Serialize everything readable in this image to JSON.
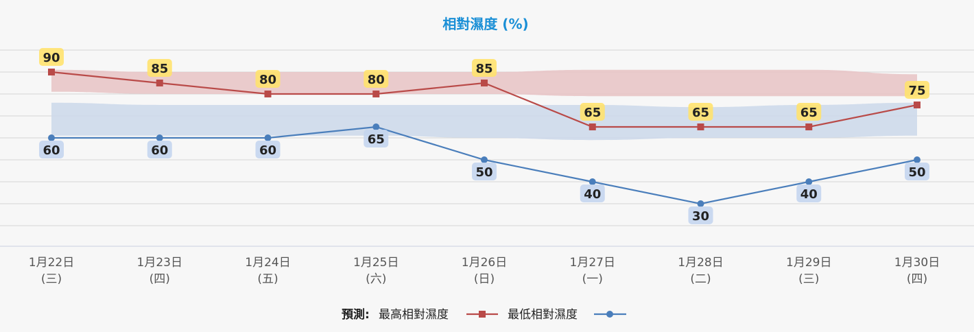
{
  "chart_data": {
    "type": "line",
    "title": "相對濕度 (%)",
    "categories": [
      [
        "1月22日",
        "(三)"
      ],
      [
        "1月23日",
        "(四)"
      ],
      [
        "1月24日",
        "(五)"
      ],
      [
        "1月25日",
        "(六)"
      ],
      [
        "1月26日",
        "(日)"
      ],
      [
        "1月27日",
        "(一)"
      ],
      [
        "1月28日",
        "(二)"
      ],
      [
        "1月29日",
        "(三)"
      ],
      [
        "1月30日",
        "(四)"
      ]
    ],
    "series": [
      {
        "name": "最高相對濕度",
        "marker": "square",
        "color": "#b94a48",
        "label_bg": "#ffe26e",
        "values": [
          90,
          85,
          80,
          80,
          85,
          65,
          65,
          65,
          75
        ]
      },
      {
        "name": "最低相對濕度",
        "marker": "circle",
        "color": "#4a7ebb",
        "label_bg": "#c4d5ee",
        "values": [
          60,
          60,
          60,
          65,
          50,
          40,
          30,
          40,
          50
        ]
      }
    ],
    "bands": [
      {
        "for": "最高相對濕度",
        "color": "#e8c3c4",
        "lower": [
          81,
          80,
          80,
          80,
          80,
          79,
          79,
          79,
          79
        ],
        "upper": [
          91,
          90,
          90,
          90,
          90,
          91,
          91,
          91,
          89
        ]
      },
      {
        "for": "最低相對濕度",
        "color": "#cbd8ea",
        "lower": [
          61,
          61,
          61,
          61,
          60,
          59,
          60,
          60,
          61
        ],
        "upper": [
          76,
          75,
          75,
          75,
          75,
          75,
          74,
          75,
          76
        ]
      }
    ],
    "ylim": [
      20,
      100
    ],
    "grid": true,
    "legend": {
      "prefix": "預測:",
      "position": "bottom-center"
    }
  }
}
